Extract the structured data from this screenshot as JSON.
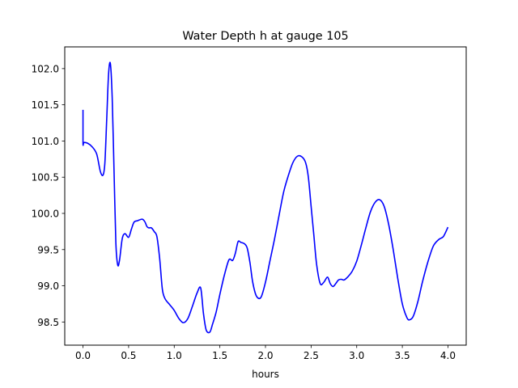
{
  "chart_data": {
    "type": "line",
    "title": "Water Depth h at gauge 105",
    "xlabel": "hours",
    "ylabel": "",
    "xlim": [
      -0.2,
      4.2
    ],
    "ylim": [
      98.18,
      102.3
    ],
    "xticks": [
      0.0,
      0.5,
      1.0,
      1.5,
      2.0,
      2.5,
      3.0,
      3.5,
      4.0
    ],
    "xtick_labels": [
      "0.0",
      "0.5",
      "1.0",
      "1.5",
      "2.0",
      "2.5",
      "3.0",
      "3.5",
      "4.0"
    ],
    "yticks": [
      98.5,
      99.0,
      99.5,
      100.0,
      100.5,
      101.0,
      101.5,
      102.0
    ],
    "ytick_labels": [
      "98.5",
      "99.0",
      "99.5",
      "100.0",
      "100.5",
      "101.0",
      "101.5",
      "102.0"
    ],
    "grid": false,
    "line_color": "#0000ff",
    "series": [
      {
        "x": [
          0.0,
          0.0,
          0.01,
          0.05,
          0.1,
          0.15,
          0.19,
          0.22,
          0.24,
          0.26,
          0.28,
          0.3,
          0.32,
          0.34,
          0.36,
          0.38,
          0.4,
          0.43,
          0.46,
          0.5,
          0.53,
          0.56,
          0.6,
          0.65,
          0.68,
          0.7,
          0.72,
          0.75,
          0.78,
          0.81,
          0.84,
          0.87,
          0.9,
          0.95,
          1.0,
          1.05,
          1.1,
          1.15,
          1.2,
          1.25,
          1.29,
          1.32,
          1.35,
          1.39,
          1.42,
          1.46,
          1.5,
          1.55,
          1.6,
          1.64,
          1.67,
          1.7,
          1.73,
          1.77,
          1.8,
          1.83,
          1.86,
          1.9,
          1.95,
          2.0,
          2.05,
          2.1,
          2.15,
          2.2,
          2.25,
          2.3,
          2.35,
          2.4,
          2.44,
          2.47,
          2.5,
          2.53,
          2.56,
          2.6,
          2.64,
          2.68,
          2.71,
          2.74,
          2.77,
          2.8,
          2.83,
          2.86,
          2.9,
          2.95,
          3.0,
          3.05,
          3.1,
          3.15,
          3.2,
          3.25,
          3.3,
          3.35,
          3.4,
          3.45,
          3.5,
          3.55,
          3.58,
          3.62,
          3.67,
          3.72,
          3.78,
          3.84,
          3.9,
          3.95,
          4.0
        ],
        "y": [
          101.43,
          100.97,
          100.98,
          100.97,
          100.92,
          100.82,
          100.58,
          100.53,
          100.7,
          101.3,
          101.92,
          102.07,
          101.6,
          100.6,
          99.6,
          99.29,
          99.35,
          99.65,
          99.72,
          99.67,
          99.78,
          99.88,
          99.9,
          99.92,
          99.88,
          99.82,
          99.8,
          99.8,
          99.75,
          99.68,
          99.38,
          98.95,
          98.82,
          98.74,
          98.66,
          98.55,
          98.49,
          98.55,
          98.72,
          98.9,
          98.97,
          98.62,
          98.39,
          98.36,
          98.47,
          98.64,
          98.88,
          99.15,
          99.36,
          99.35,
          99.45,
          99.61,
          99.6,
          99.58,
          99.52,
          99.32,
          99.05,
          98.86,
          98.84,
          99.05,
          99.35,
          99.65,
          99.98,
          100.3,
          100.52,
          100.7,
          100.79,
          100.78,
          100.7,
          100.5,
          100.1,
          99.7,
          99.3,
          99.03,
          99.05,
          99.12,
          99.03,
          98.99,
          99.03,
          99.08,
          99.09,
          99.08,
          99.12,
          99.2,
          99.34,
          99.56,
          99.8,
          100.02,
          100.15,
          100.19,
          100.1,
          99.85,
          99.5,
          99.1,
          98.75,
          98.56,
          98.53,
          98.58,
          98.78,
          99.05,
          99.33,
          99.55,
          99.64,
          99.68,
          99.81
        ]
      }
    ]
  }
}
